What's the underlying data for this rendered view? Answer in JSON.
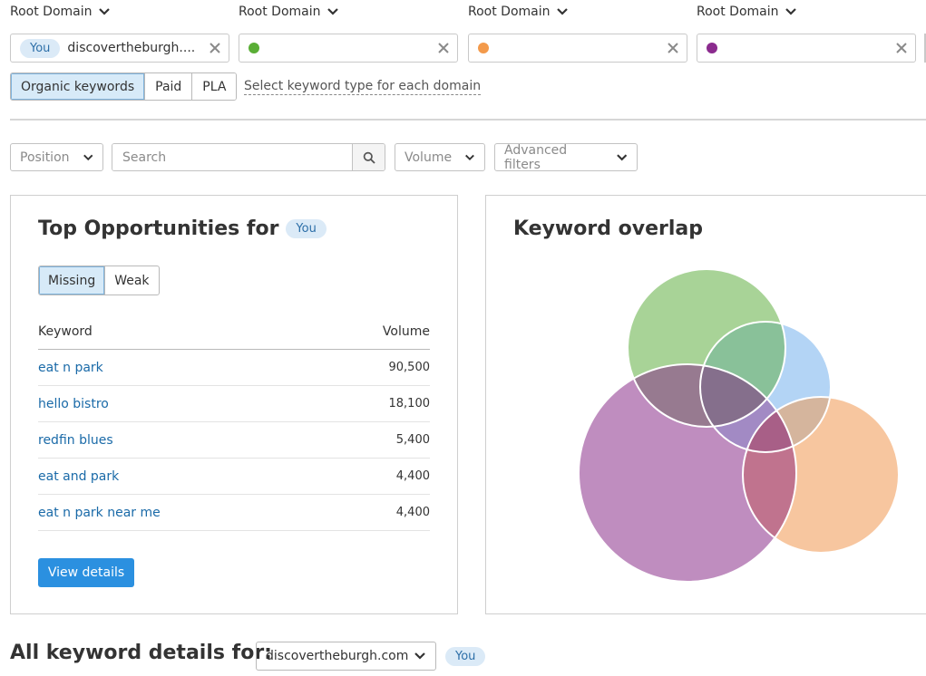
{
  "header": {
    "root_domain_label": "Root Domain",
    "domains": [
      {
        "you_badge": "You",
        "value": "discovertheburgh....",
        "dot_color": null
      },
      {
        "value": "",
        "dot_color": "#5aae36"
      },
      {
        "value": "",
        "dot_color": "#f39a4b"
      },
      {
        "value": "",
        "dot_color": "#8b2b8e"
      }
    ]
  },
  "keyword_type": {
    "options": [
      "Organic keywords",
      "Paid",
      "PLA"
    ],
    "selected": "Organic keywords",
    "link_text": "Select keyword type for each domain"
  },
  "filters": {
    "position": "Position",
    "search_placeholder": "Search",
    "volume": "Volume",
    "advanced": "Advanced filters"
  },
  "opportunities": {
    "title": "Top Opportunities for",
    "you_badge": "You",
    "tabs": [
      "Missing",
      "Weak"
    ],
    "active_tab": "Missing",
    "columns": {
      "keyword": "Keyword",
      "volume": "Volume"
    },
    "rows": [
      {
        "keyword": "eat n park",
        "volume": "90,500"
      },
      {
        "keyword": "hello bistro",
        "volume": "18,100"
      },
      {
        "keyword": "redfin blues",
        "volume": "5,400"
      },
      {
        "keyword": "eat and park",
        "volume": "4,400"
      },
      {
        "keyword": "eat n park near me",
        "volume": "4,400"
      }
    ],
    "button": "View details"
  },
  "overlap": {
    "title": "Keyword overlap",
    "colors": {
      "green": "#a8d397",
      "blue": "#b3d4f5",
      "orange": "#f7c69f",
      "purple": "#bf8dbf"
    }
  },
  "footer": {
    "title": "All keyword details for:",
    "domain": "discovertheburgh.com",
    "you_badge": "You"
  },
  "icons": {
    "chevron": "chevron-down-icon",
    "close": "close-icon",
    "search": "search-icon"
  }
}
